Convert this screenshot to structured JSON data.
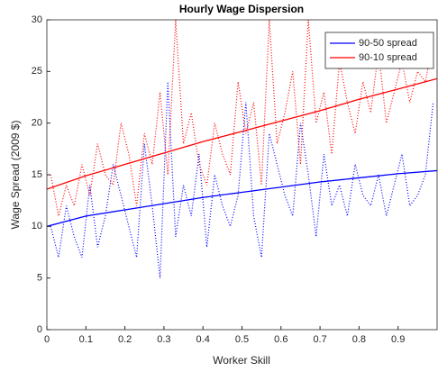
{
  "chart_data": {
    "type": "line",
    "title": "Hourly Wage Dispersion",
    "x_label": "Worker Skill",
    "y_label": "Wage Spread (2009 $)",
    "xlim": [
      0,
      1
    ],
    "ylim": [
      0,
      30
    ],
    "xticks": [
      0,
      0.1,
      0.2,
      0.3,
      0.4,
      0.5,
      0.6,
      0.7,
      0.8,
      0.9
    ],
    "yticks": [
      0,
      5,
      10,
      15,
      20,
      25,
      30
    ],
    "legend": "upper right",
    "series": [
      {
        "color": "#0000ff",
        "style": "dotted",
        "x": [
          0.01,
          0.03,
          0.05,
          0.07,
          0.09,
          0.11,
          0.13,
          0.15,
          0.17,
          0.19,
          0.21,
          0.23,
          0.25,
          0.27,
          0.29,
          0.31,
          0.33,
          0.35,
          0.37,
          0.39,
          0.41,
          0.43,
          0.45,
          0.47,
          0.49,
          0.51,
          0.53,
          0.55,
          0.57,
          0.59,
          0.61,
          0.63,
          0.65,
          0.67,
          0.69,
          0.71,
          0.73,
          0.75,
          0.77,
          0.79,
          0.81,
          0.83,
          0.85,
          0.87,
          0.89,
          0.91,
          0.93,
          0.95,
          0.97,
          0.99
        ],
        "values": [
          10,
          7,
          12,
          9,
          7,
          14,
          8,
          11,
          16,
          13,
          10,
          7,
          18,
          12,
          5,
          24,
          9,
          14,
          11,
          17,
          8,
          15,
          12,
          10,
          13,
          22,
          11,
          7,
          19,
          16,
          13,
          11,
          20,
          15,
          9,
          17,
          12,
          14,
          11,
          16,
          13,
          12,
          15,
          11,
          14,
          17,
          12,
          13,
          15,
          22
        ]
      },
      {
        "color": "#ff0000",
        "style": "dotted",
        "x": [
          0.01,
          0.03,
          0.05,
          0.07,
          0.09,
          0.11,
          0.13,
          0.15,
          0.17,
          0.19,
          0.21,
          0.23,
          0.25,
          0.27,
          0.29,
          0.31,
          0.33,
          0.35,
          0.37,
          0.39,
          0.41,
          0.43,
          0.45,
          0.47,
          0.49,
          0.51,
          0.53,
          0.55,
          0.57,
          0.59,
          0.61,
          0.63,
          0.65,
          0.67,
          0.69,
          0.71,
          0.73,
          0.75,
          0.77,
          0.79,
          0.81,
          0.83,
          0.85,
          0.87,
          0.89,
          0.91,
          0.93,
          0.95,
          0.97,
          0.99
        ],
        "values": [
          15,
          11,
          14,
          12,
          16,
          13,
          18,
          15,
          14,
          20,
          17,
          12,
          19,
          16,
          23,
          15,
          30,
          18,
          21,
          16,
          14,
          20,
          17,
          15,
          24,
          19,
          22,
          14,
          30,
          18,
          21,
          25,
          16,
          30,
          20,
          23,
          17,
          26,
          22,
          19,
          24,
          21,
          27,
          20,
          23,
          26,
          22,
          25,
          24,
          28
        ]
      },
      {
        "name": "90-50 spread",
        "color": "#0000ff",
        "style": "solid",
        "x": [
          0,
          0.1,
          0.2,
          0.3,
          0.4,
          0.5,
          0.6,
          0.7,
          0.8,
          0.9,
          1
        ],
        "values": [
          10.0,
          11.0,
          11.6,
          12.2,
          12.8,
          13.3,
          13.8,
          14.3,
          14.7,
          15.1,
          15.4
        ]
      },
      {
        "name": "90-10 spread",
        "color": "#ff0000",
        "style": "solid",
        "x": [
          0,
          0.1,
          0.2,
          0.3,
          0.4,
          0.5,
          0.6,
          0.7,
          0.8,
          0.9,
          1
        ],
        "values": [
          13.6,
          14.9,
          16.0,
          17.1,
          18.2,
          19.2,
          20.2,
          21.2,
          22.3,
          23.3,
          24.3
        ]
      }
    ]
  }
}
